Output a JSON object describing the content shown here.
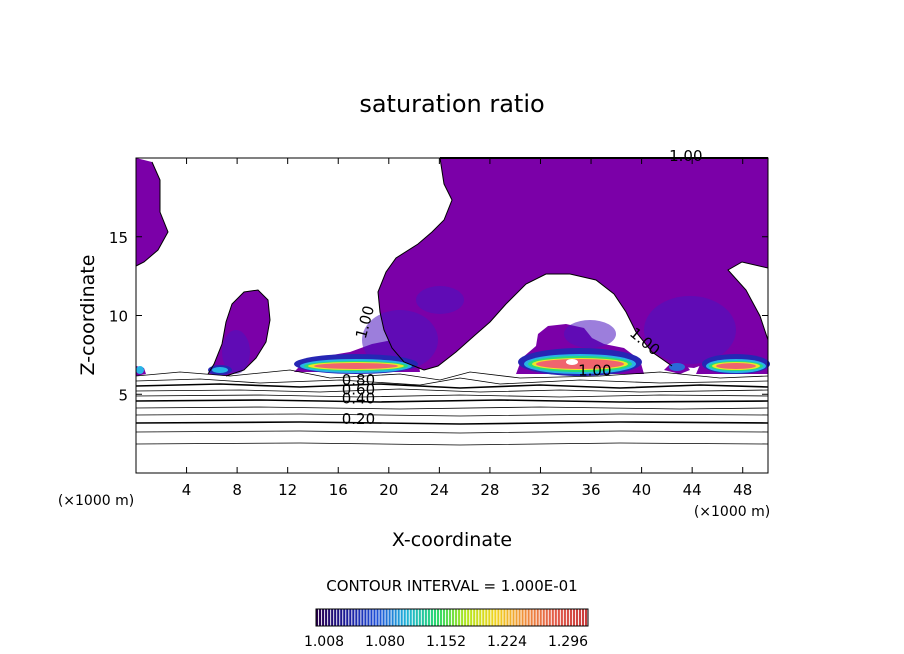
{
  "chart_data": {
    "type": "contour",
    "title": "saturation ratio",
    "xlabel": "X-coordinate",
    "ylabel": "Z-coordinate",
    "x_unit_left": "(×1000 m)",
    "x_unit_right": "(×1000 m)",
    "xlim": [
      0,
      50
    ],
    "ylim": [
      0,
      20
    ],
    "x_ticks": [
      4,
      8,
      12,
      16,
      20,
      24,
      28,
      32,
      36,
      40,
      44,
      48
    ],
    "x_tick_labels": [
      "4",
      "8",
      "12",
      "16",
      "20",
      "24",
      "28",
      "32",
      "36",
      "40",
      "44",
      "48"
    ],
    "y_ticks": [
      5,
      10,
      15
    ],
    "y_tick_labels": [
      "5",
      "10",
      "15"
    ],
    "contour_labels": [
      {
        "text": "1.00",
        "x": 43.5,
        "y": 19.8
      },
      {
        "text": "1.00",
        "x": 18.5,
        "y": 9.5,
        "rotate": -75
      },
      {
        "text": "1.00",
        "x": 40.0,
        "y": 8.1,
        "rotate": 40
      },
      {
        "text": "1.00",
        "x": 36.3,
        "y": 6.2
      },
      {
        "text": "0.80",
        "x": 17.6,
        "y": 5.6
      },
      {
        "text": "0.60",
        "x": 17.6,
        "y": 5.0
      },
      {
        "text": "0.40",
        "x": 17.6,
        "y": 4.4
      },
      {
        "text": "0.20",
        "x": 17.6,
        "y": 3.1
      }
    ],
    "contour_interval_text": "CONTOUR INTERVAL = 1.000E-01",
    "colorbar": {
      "tick_labels": [
        "1.008",
        "1.080",
        "1.152",
        "1.224",
        "1.296"
      ],
      "colors": [
        "#2a0050",
        "#1a1a9a",
        "#1f4fd8",
        "#1fb4d8",
        "#2ad86e",
        "#b4e61e",
        "#f2d21e",
        "#f08a3c",
        "#e25a4a",
        "#c83c3c"
      ]
    },
    "field_colors": {
      "saturated": "#7b00a8",
      "deep_blue": "#2626b4",
      "cyan": "#28b4e6",
      "green": "#28dc78",
      "yellow": "#eee628",
      "red": "#f0646e",
      "white": "#ffffff"
    }
  }
}
